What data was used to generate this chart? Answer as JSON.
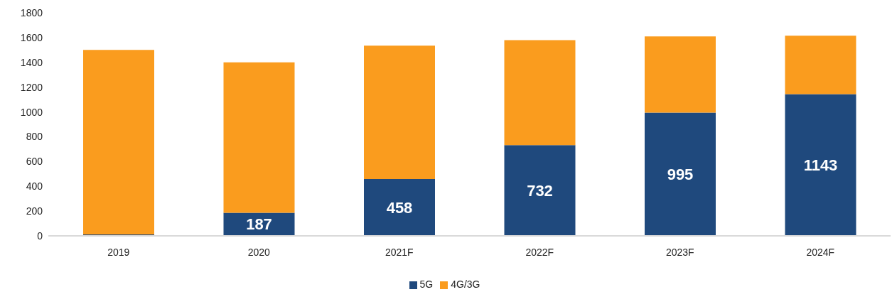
{
  "chart_data": {
    "type": "bar",
    "stacked": true,
    "categories": [
      "2019",
      "2020",
      "2021F",
      "2022F",
      "2023F",
      "2024F"
    ],
    "series": [
      {
        "name": "5G",
        "color": "#1f497d",
        "values": [
          12,
          187,
          458,
          732,
          995,
          1143
        ],
        "value_labels": [
          null,
          "187",
          "458",
          "732",
          "995",
          "1143"
        ]
      },
      {
        "name": "4G/3G",
        "color": "#fa9c1e",
        "values": [
          1488,
          1213,
          1077,
          848,
          615,
          472
        ]
      }
    ],
    "ylim": [
      0,
      1800
    ],
    "yticks": [
      0,
      200,
      400,
      600,
      800,
      1000,
      1200,
      1400,
      1600,
      1800
    ],
    "grid": false,
    "legend": "bottom"
  }
}
